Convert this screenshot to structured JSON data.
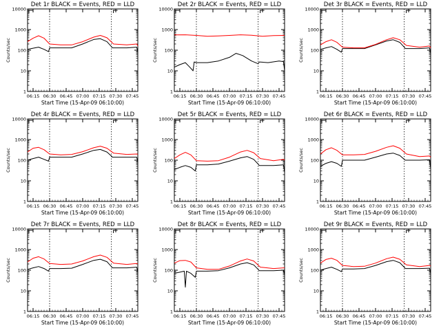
{
  "colors": {
    "events": "#000000",
    "lld": "#ff0000",
    "frame": "#000000",
    "background": "#ffffff"
  },
  "chart_data": [
    {
      "type": "line",
      "title": "Det 1r BLACK = Events, RED = LLD",
      "xlabel": "Start Time (15-Apr-09 06:10:00)",
      "ylabel": "Counts/sec",
      "yscale": "log",
      "ylim": [
        1,
        10000
      ],
      "x_ticks": [
        "06:15",
        "06:30",
        "06:45",
        "07:00",
        "07:15",
        "07:30",
        "07:45"
      ],
      "y_ticks": [
        "1",
        "10",
        "100",
        "1000",
        "10000"
      ],
      "x_range_minutes": [
        0,
        100
      ],
      "dotted_lines_minutes": [
        20,
        76
      ],
      "series": [
        {
          "name": "Events",
          "color": "#000000",
          "x": [
            0,
            5,
            10,
            15,
            19,
            20,
            30,
            40,
            50,
            60,
            66,
            72,
            76,
            77,
            80,
            90,
            99,
            100
          ],
          "y": [
            110,
            125,
            140,
            110,
            85,
            130,
            130,
            130,
            200,
            330,
            360,
            260,
            150,
            130,
            130,
            130,
            140,
            80
          ]
        },
        {
          "name": "LLD",
          "color": "#ff0000",
          "x": [
            0,
            5,
            10,
            15,
            20,
            30,
            40,
            50,
            60,
            66,
            72,
            78,
            90,
            99,
            100
          ],
          "y": [
            260,
            380,
            500,
            380,
            200,
            180,
            180,
            260,
            430,
            520,
            400,
            200,
            180,
            200,
            160
          ]
        }
      ]
    },
    {
      "type": "line",
      "title": "Det 2r BLACK = Events, RED = LLD",
      "xlabel": "Start Time (15-Apr-09 06:10:00)",
      "ylabel": "Counts/sec",
      "yscale": "log",
      "ylim": [
        1,
        10000
      ],
      "x_ticks": [
        "06:15",
        "06:30",
        "06:45",
        "07:00",
        "07:15",
        "07:30",
        "07:45"
      ],
      "y_ticks": [
        "1",
        "10",
        "100",
        "1000",
        "10000"
      ],
      "x_range_minutes": [
        0,
        100
      ],
      "dotted_lines_minutes": [
        20,
        76
      ],
      "series": [
        {
          "name": "Events",
          "color": "#000000",
          "x": [
            0,
            5,
            10,
            14,
            17,
            18,
            20,
            30,
            40,
            50,
            56,
            62,
            70,
            76,
            77,
            85,
            95,
            99,
            100
          ],
          "y": [
            15,
            20,
            25,
            15,
            10,
            27,
            25,
            25,
            30,
            45,
            70,
            55,
            30,
            22,
            27,
            25,
            30,
            28,
            10
          ]
        },
        {
          "name": "LLD",
          "color": "#ff0000",
          "x": [
            0,
            10,
            20,
            30,
            40,
            50,
            60,
            70,
            80,
            90,
            100
          ],
          "y": [
            550,
            560,
            520,
            470,
            490,
            520,
            560,
            530,
            470,
            510,
            520
          ]
        }
      ]
    },
    {
      "type": "line",
      "title": "Det 3r BLACK = Events, RED = LLD",
      "xlabel": "Start Time (15-Apr-09 06:10:00)",
      "ylabel": "Counts/sec",
      "yscale": "log",
      "ylim": [
        1,
        10000
      ],
      "x_ticks": [
        "06:15",
        "06:30",
        "06:45",
        "07:00",
        "07:15",
        "07:30",
        "07:45"
      ],
      "y_ticks": [
        "1",
        "10",
        "100",
        "1000",
        "10000"
      ],
      "x_range_minutes": [
        0,
        100
      ],
      "dotted_lines_minutes": [
        20,
        76
      ],
      "series": [
        {
          "name": "Events",
          "color": "#000000",
          "x": [
            0,
            5,
            10,
            15,
            19,
            20,
            30,
            40,
            50,
            60,
            66,
            72,
            76,
            77,
            80,
            90,
            99,
            100
          ],
          "y": [
            110,
            130,
            150,
            110,
            80,
            120,
            120,
            120,
            180,
            280,
            320,
            240,
            140,
            120,
            120,
            120,
            130,
            70
          ]
        },
        {
          "name": "LLD",
          "color": "#ff0000",
          "x": [
            0,
            5,
            10,
            15,
            20,
            30,
            40,
            50,
            60,
            66,
            72,
            78,
            90,
            99,
            100
          ],
          "y": [
            180,
            260,
            320,
            240,
            140,
            130,
            130,
            190,
            320,
            400,
            320,
            170,
            140,
            160,
            130
          ]
        }
      ]
    },
    {
      "type": "line",
      "title": "Det 4r BLACK = Events, RED = LLD",
      "xlabel": "Start Time (15-Apr-09 06:10:00)",
      "ylabel": "Counts/sec",
      "yscale": "log",
      "ylim": [
        1,
        10000
      ],
      "x_ticks": [
        "06:15",
        "06:30",
        "06:45",
        "07:00",
        "07:15",
        "07:30",
        "07:45"
      ],
      "y_ticks": [
        "1",
        "10",
        "100",
        "1000",
        "10000"
      ],
      "x_range_minutes": [
        0,
        100
      ],
      "dotted_lines_minutes": [
        20,
        76
      ],
      "series": [
        {
          "name": "Events",
          "color": "#000000",
          "x": [
            0,
            5,
            10,
            15,
            19,
            20,
            30,
            40,
            50,
            60,
            66,
            72,
            76,
            77,
            80,
            90,
            99,
            100
          ],
          "y": [
            100,
            120,
            140,
            110,
            90,
            140,
            140,
            140,
            200,
            300,
            330,
            250,
            160,
            140,
            140,
            140,
            140,
            80
          ]
        },
        {
          "name": "LLD",
          "color": "#ff0000",
          "x": [
            0,
            5,
            10,
            15,
            20,
            30,
            40,
            50,
            60,
            66,
            72,
            78,
            90,
            99,
            100
          ],
          "y": [
            250,
            380,
            420,
            320,
            200,
            180,
            190,
            260,
            400,
            480,
            380,
            220,
            190,
            200,
            190
          ]
        }
      ]
    },
    {
      "type": "line",
      "title": "Det 5r BLACK = Events, RED = LLD",
      "xlabel": "Start Time (15-Apr-09 06:10:00)",
      "ylabel": "Counts/sec",
      "yscale": "log",
      "ylim": [
        1,
        10000
      ],
      "x_ticks": [
        "06:15",
        "06:30",
        "06:45",
        "07:00",
        "07:15",
        "07:30",
        "07:45"
      ],
      "y_ticks": [
        "1",
        "10",
        "100",
        "1000",
        "10000"
      ],
      "x_range_minutes": [
        0,
        100
      ],
      "dotted_lines_minutes": [
        20,
        76
      ],
      "series": [
        {
          "name": "Events",
          "color": "#000000",
          "x": [
            0,
            5,
            10,
            15,
            19,
            20,
            30,
            40,
            50,
            60,
            66,
            72,
            76,
            77,
            80,
            90,
            99,
            100
          ],
          "y": [
            35,
            45,
            55,
            45,
            30,
            60,
            60,
            65,
            90,
            130,
            150,
            110,
            65,
            55,
            55,
            55,
            60,
            25
          ]
        },
        {
          "name": "LLD",
          "color": "#ff0000",
          "x": [
            0,
            5,
            10,
            15,
            20,
            30,
            40,
            50,
            60,
            66,
            72,
            78,
            90,
            99,
            100
          ],
          "y": [
            120,
            180,
            240,
            180,
            95,
            90,
            95,
            140,
            250,
            300,
            230,
            120,
            95,
            110,
            100
          ]
        }
      ]
    },
    {
      "type": "line",
      "title": "Det 6r BLACK = Events, RED = LLD",
      "xlabel": "Start Time (15-Apr-09 06:10:00)",
      "ylabel": "Counts/sec",
      "yscale": "log",
      "ylim": [
        1,
        10000
      ],
      "x_ticks": [
        "06:15",
        "06:30",
        "06:45",
        "07:00",
        "07:15",
        "07:30",
        "07:45"
      ],
      "y_ticks": [
        "1",
        "10",
        "100",
        "1000",
        "10000"
      ],
      "x_range_minutes": [
        0,
        100
      ],
      "dotted_lines_minutes": [
        20,
        76
      ],
      "series": [
        {
          "name": "Events",
          "color": "#000000",
          "x": [
            0,
            5,
            10,
            15,
            19,
            20,
            30,
            40,
            50,
            60,
            66,
            72,
            76,
            77,
            80,
            90,
            99,
            100
          ],
          "y": [
            50,
            70,
            85,
            70,
            50,
            100,
            100,
            100,
            140,
            200,
            220,
            170,
            110,
            100,
            100,
            100,
            105,
            40
          ]
        },
        {
          "name": "LLD",
          "color": "#ff0000",
          "x": [
            0,
            5,
            10,
            15,
            20,
            30,
            40,
            50,
            60,
            66,
            72,
            78,
            90,
            99,
            100
          ],
          "y": [
            200,
            320,
            400,
            300,
            180,
            180,
            190,
            270,
            420,
            500,
            380,
            200,
            150,
            160,
            140
          ]
        }
      ]
    },
    {
      "type": "line",
      "title": "Det 7r BLACK = Events, RED = LLD",
      "xlabel": "Start Time (15-Apr-09 06:10:00)",
      "ylabel": "Counts/sec",
      "yscale": "log",
      "ylim": [
        1,
        10000
      ],
      "x_ticks": [
        "06:15",
        "06:30",
        "06:45",
        "07:00",
        "07:15",
        "07:30",
        "07:45"
      ],
      "y_ticks": [
        "1",
        "10",
        "100",
        "1000",
        "10000"
      ],
      "x_range_minutes": [
        0,
        100
      ],
      "dotted_lines_minutes": [
        20,
        76
      ],
      "series": [
        {
          "name": "Events",
          "color": "#000000",
          "x": [
            0,
            5,
            10,
            15,
            19,
            20,
            30,
            40,
            50,
            60,
            66,
            72,
            76,
            77,
            80,
            90,
            99,
            100
          ],
          "y": [
            110,
            130,
            150,
            120,
            90,
            120,
            120,
            125,
            190,
            300,
            340,
            260,
            150,
            130,
            130,
            130,
            140,
            80
          ]
        },
        {
          "name": "LLD",
          "color": "#ff0000",
          "x": [
            0,
            5,
            10,
            15,
            20,
            30,
            40,
            50,
            60,
            66,
            72,
            78,
            90,
            99,
            100
          ],
          "y": [
            250,
            380,
            450,
            350,
            210,
            190,
            200,
            280,
            450,
            540,
            420,
            220,
            190,
            210,
            200
          ]
        }
      ]
    },
    {
      "type": "line",
      "title": "Det 8r BLACK = Events, RED = LLD",
      "xlabel": "Start Time (15-Apr-09 06:10:00)",
      "ylabel": "Counts/sec",
      "yscale": "log",
      "ylim": [
        1,
        10000
      ],
      "x_ticks": [
        "06:15",
        "06:30",
        "06:45",
        "07:00",
        "07:15",
        "07:30",
        "07:45"
      ],
      "y_ticks": [
        "1",
        "10",
        "100",
        "1000",
        "10000"
      ],
      "x_range_minutes": [
        0,
        100
      ],
      "dotted_lines_minutes": [
        20,
        76
      ],
      "series": [
        {
          "name": "Events",
          "color": "#000000",
          "x": [
            0,
            5,
            9,
            10,
            11,
            15,
            19,
            20,
            30,
            40,
            50,
            60,
            66,
            72,
            76,
            77,
            80,
            90,
            99,
            100
          ],
          "y": [
            70,
            80,
            90,
            15,
            90,
            70,
            45,
            90,
            90,
            95,
            130,
            200,
            230,
            180,
            110,
            95,
            95,
            95,
            100,
            60
          ]
        },
        {
          "name": "LLD",
          "color": "#ff0000",
          "x": [
            0,
            5,
            10,
            15,
            20,
            30,
            40,
            50,
            60,
            66,
            72,
            78,
            90,
            99,
            100
          ],
          "y": [
            220,
            290,
            300,
            250,
            130,
            110,
            110,
            160,
            280,
            350,
            280,
            140,
            120,
            130,
            130
          ]
        }
      ]
    },
    {
      "type": "line",
      "title": "Det 9r BLACK = Events, RED = LLD",
      "xlabel": "Start Time (15-Apr-09 06:10:00)",
      "ylabel": "Counts/sec",
      "yscale": "log",
      "ylim": [
        1,
        10000
      ],
      "x_ticks": [
        "06:15",
        "06:30",
        "06:45",
        "07:00",
        "07:15",
        "07:30",
        "07:45"
      ],
      "y_ticks": [
        "1",
        "10",
        "100",
        "1000",
        "10000"
      ],
      "x_range_minutes": [
        0,
        100
      ],
      "dotted_lines_minutes": [
        20,
        76
      ],
      "series": [
        {
          "name": "Events",
          "color": "#000000",
          "x": [
            0,
            5,
            10,
            15,
            19,
            20,
            30,
            40,
            50,
            60,
            66,
            72,
            76,
            77,
            80,
            90,
            99,
            100
          ],
          "y": [
            100,
            120,
            140,
            110,
            85,
            115,
            115,
            120,
            170,
            260,
            300,
            230,
            140,
            120,
            120,
            120,
            125,
            70
          ]
        },
        {
          "name": "LLD",
          "color": "#ff0000",
          "x": [
            0,
            5,
            10,
            15,
            20,
            30,
            40,
            50,
            60,
            66,
            72,
            78,
            90,
            99,
            100
          ],
          "y": [
            220,
            330,
            380,
            300,
            170,
            150,
            155,
            220,
            360,
            430,
            340,
            180,
            150,
            170,
            160
          ]
        }
      ]
    }
  ]
}
